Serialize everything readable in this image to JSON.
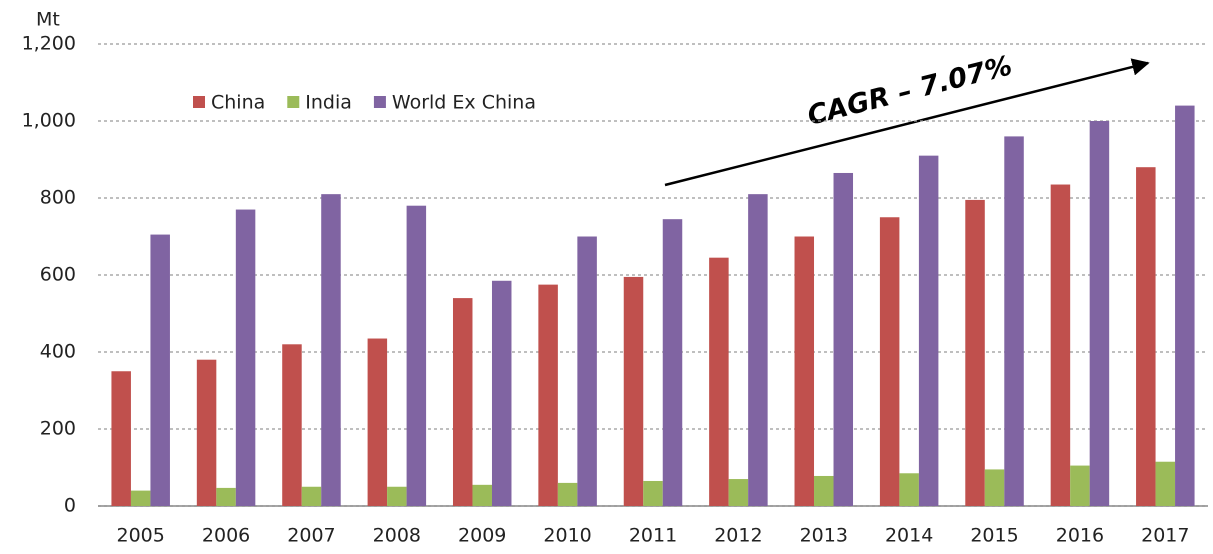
{
  "chart_data": {
    "type": "bar",
    "y_label": "Mt",
    "annotation": "CAGR – 7.07%",
    "categories": [
      "2005",
      "2006",
      "2007",
      "2008",
      "2009",
      "2010",
      "2011",
      "2012",
      "2013",
      "2014",
      "2015",
      "2016",
      "2017"
    ],
    "series": [
      {
        "name": "China",
        "color": "#c0504d",
        "values": [
          350,
          380,
          420,
          435,
          540,
          575,
          595,
          645,
          700,
          750,
          795,
          835,
          880
        ]
      },
      {
        "name": "India",
        "color": "#9bbb59",
        "values": [
          40,
          47,
          50,
          50,
          55,
          60,
          65,
          70,
          78,
          85,
          95,
          105,
          115
        ]
      },
      {
        "name": "World Ex China",
        "color": "#8064a2",
        "values": [
          705,
          770,
          810,
          780,
          585,
          700,
          745,
          810,
          865,
          910,
          960,
          1000,
          1040
        ]
      }
    ],
    "ylim": [
      0,
      1200
    ],
    "yticks": [
      0,
      200,
      400,
      600,
      800,
      {
        "value": 1000,
        "label": "1,000"
      },
      {
        "value": 1200,
        "label": "1,200"
      }
    ],
    "grid": true,
    "legend": "top-left"
  }
}
